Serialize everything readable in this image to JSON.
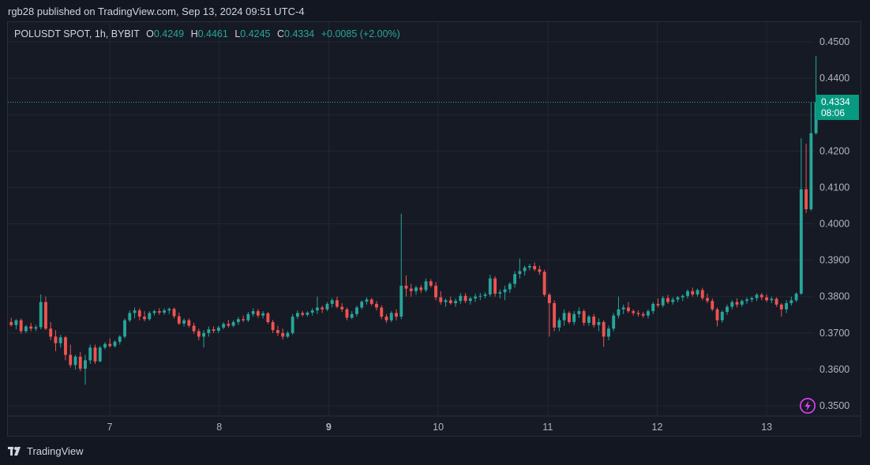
{
  "header": {
    "published": "rgb28 published on TradingView.com, Sep 13, 2024 09:51 UTC-4"
  },
  "legend": {
    "symbol": "POLUSDT SPOT, 1h, BYBIT",
    "open_label": "O",
    "open": "0.4249",
    "high_label": "H",
    "high": "0.4461",
    "low_label": "L",
    "low": "0.4245",
    "close_label": "C",
    "close": "0.4334",
    "change": "+0.0085 (+2.00%)"
  },
  "price_tag": {
    "price": "0.4334",
    "countdown": "08:06"
  },
  "footer": {
    "brand": "TradingView"
  },
  "colors": {
    "up": "#26a69a",
    "down": "#ef5350",
    "tag": "#089981",
    "bg": "#131722"
  },
  "chart_data": {
    "type": "candlestick",
    "interval": "1h",
    "y_ticks": [
      "0.4500",
      "0.4400",
      "0.4300",
      "0.4200",
      "0.4100",
      "0.4000",
      "0.3900",
      "0.3800",
      "0.3700",
      "0.3600",
      "0.3500"
    ],
    "x_ticks": [
      "7",
      "8",
      "9",
      "10",
      "11",
      "12",
      "13"
    ],
    "ylim": [
      0.3465,
      0.4535
    ],
    "x_day_start": 6.1,
    "x_day_end": 13.45,
    "last_price": 0.4334,
    "ohlc": [
      [
        0.373,
        0.3742,
        0.3718,
        0.3722
      ],
      [
        0.3722,
        0.3738,
        0.371,
        0.3735
      ],
      [
        0.3735,
        0.374,
        0.3698,
        0.3705
      ],
      [
        0.3705,
        0.3722,
        0.37,
        0.3718
      ],
      [
        0.3718,
        0.3728,
        0.3705,
        0.3712
      ],
      [
        0.3712,
        0.3722,
        0.3705,
        0.3716
      ],
      [
        0.3716,
        0.3806,
        0.371,
        0.3785
      ],
      [
        0.3785,
        0.38,
        0.3708,
        0.3712
      ],
      [
        0.3712,
        0.373,
        0.368,
        0.369
      ],
      [
        0.369,
        0.3708,
        0.365,
        0.3672
      ],
      [
        0.3672,
        0.3695,
        0.366,
        0.3688
      ],
      [
        0.3688,
        0.3692,
        0.3625,
        0.364
      ],
      [
        0.364,
        0.3668,
        0.3605,
        0.3612
      ],
      [
        0.3612,
        0.364,
        0.36,
        0.3635
      ],
      [
        0.3635,
        0.3648,
        0.3595,
        0.3602
      ],
      [
        0.3602,
        0.364,
        0.3558,
        0.3625
      ],
      [
        0.3625,
        0.3668,
        0.3615,
        0.366
      ],
      [
        0.366,
        0.3668,
        0.3615,
        0.3622
      ],
      [
        0.3622,
        0.3665,
        0.362,
        0.366
      ],
      [
        0.366,
        0.3675,
        0.3655,
        0.367
      ],
      [
        0.367,
        0.3685,
        0.366,
        0.3664
      ],
      [
        0.3664,
        0.368,
        0.366,
        0.3676
      ],
      [
        0.3676,
        0.3694,
        0.3668,
        0.369
      ],
      [
        0.369,
        0.374,
        0.3685,
        0.3735
      ],
      [
        0.3735,
        0.3762,
        0.373,
        0.3755
      ],
      [
        0.3755,
        0.377,
        0.374,
        0.3762
      ],
      [
        0.3762,
        0.3768,
        0.3735,
        0.3745
      ],
      [
        0.3745,
        0.376,
        0.3732,
        0.3738
      ],
      [
        0.3738,
        0.376,
        0.3734,
        0.3755
      ],
      [
        0.3755,
        0.3764,
        0.3748,
        0.376
      ],
      [
        0.376,
        0.3768,
        0.375,
        0.3756
      ],
      [
        0.3756,
        0.3768,
        0.375,
        0.3762
      ],
      [
        0.3762,
        0.377,
        0.3752,
        0.3766
      ],
      [
        0.3766,
        0.377,
        0.374,
        0.3746
      ],
      [
        0.3746,
        0.3756,
        0.3722,
        0.3726
      ],
      [
        0.3726,
        0.374,
        0.3718,
        0.3735
      ],
      [
        0.3735,
        0.374,
        0.3715,
        0.372
      ],
      [
        0.372,
        0.3728,
        0.3698,
        0.3705
      ],
      [
        0.3705,
        0.3712,
        0.368,
        0.369
      ],
      [
        0.369,
        0.3708,
        0.366,
        0.37
      ],
      [
        0.37,
        0.3718,
        0.369,
        0.371
      ],
      [
        0.371,
        0.3718,
        0.37,
        0.3706
      ],
      [
        0.3706,
        0.372,
        0.37,
        0.3715
      ],
      [
        0.3715,
        0.373,
        0.371,
        0.3725
      ],
      [
        0.3725,
        0.3736,
        0.3715,
        0.372
      ],
      [
        0.372,
        0.3735,
        0.3716,
        0.373
      ],
      [
        0.373,
        0.3744,
        0.3722,
        0.3738
      ],
      [
        0.3738,
        0.3748,
        0.373,
        0.3735
      ],
      [
        0.3735,
        0.3758,
        0.373,
        0.3752
      ],
      [
        0.3752,
        0.3768,
        0.3745,
        0.376
      ],
      [
        0.376,
        0.3766,
        0.3742,
        0.3748
      ],
      [
        0.3748,
        0.376,
        0.374,
        0.3754
      ],
      [
        0.3754,
        0.3758,
        0.3725,
        0.373
      ],
      [
        0.373,
        0.3736,
        0.37,
        0.3708
      ],
      [
        0.3708,
        0.372,
        0.3692,
        0.37
      ],
      [
        0.37,
        0.3712,
        0.3682,
        0.369
      ],
      [
        0.369,
        0.3705,
        0.3686,
        0.37
      ],
      [
        0.37,
        0.3752,
        0.3695,
        0.3745
      ],
      [
        0.3745,
        0.3762,
        0.3738,
        0.3755
      ],
      [
        0.3755,
        0.376,
        0.3745,
        0.375
      ],
      [
        0.375,
        0.376,
        0.3745,
        0.3756
      ],
      [
        0.3756,
        0.3768,
        0.3748,
        0.3762
      ],
      [
        0.3762,
        0.38,
        0.3752,
        0.377
      ],
      [
        0.377,
        0.3775,
        0.3755,
        0.3765
      ],
      [
        0.3765,
        0.3785,
        0.376,
        0.378
      ],
      [
        0.378,
        0.3796,
        0.377,
        0.379
      ],
      [
        0.379,
        0.38,
        0.3768,
        0.3772
      ],
      [
        0.3772,
        0.3782,
        0.3758,
        0.3765
      ],
      [
        0.3765,
        0.377,
        0.3735,
        0.3742
      ],
      [
        0.3742,
        0.376,
        0.3738,
        0.3752
      ],
      [
        0.3752,
        0.3775,
        0.3745,
        0.377
      ],
      [
        0.377,
        0.379,
        0.3765,
        0.3786
      ],
      [
        0.3786,
        0.3798,
        0.3778,
        0.3792
      ],
      [
        0.3792,
        0.3796,
        0.3775,
        0.378
      ],
      [
        0.378,
        0.3788,
        0.3762,
        0.377
      ],
      [
        0.377,
        0.3776,
        0.3738,
        0.3745
      ],
      [
        0.3745,
        0.3752,
        0.3728,
        0.3735
      ],
      [
        0.3735,
        0.376,
        0.373,
        0.3755
      ],
      [
        0.3755,
        0.3765,
        0.3735,
        0.3745
      ],
      [
        0.3745,
        0.4028,
        0.3738,
        0.383
      ],
      [
        0.383,
        0.3858,
        0.38,
        0.3822
      ],
      [
        0.3822,
        0.3835,
        0.38,
        0.3815
      ],
      [
        0.3815,
        0.383,
        0.3805,
        0.3825
      ],
      [
        0.3825,
        0.3832,
        0.381,
        0.3818
      ],
      [
        0.3818,
        0.385,
        0.3812,
        0.3842
      ],
      [
        0.3842,
        0.3848,
        0.3825,
        0.383
      ],
      [
        0.383,
        0.384,
        0.379,
        0.3798
      ],
      [
        0.3798,
        0.3815,
        0.3778,
        0.3785
      ],
      [
        0.3785,
        0.3795,
        0.3772,
        0.379
      ],
      [
        0.379,
        0.38,
        0.3778,
        0.3782
      ],
      [
        0.3782,
        0.3795,
        0.3772,
        0.3788
      ],
      [
        0.3788,
        0.381,
        0.378,
        0.3802
      ],
      [
        0.3802,
        0.381,
        0.3782,
        0.3788
      ],
      [
        0.3788,
        0.38,
        0.3778,
        0.3795
      ],
      [
        0.3795,
        0.3808,
        0.3785,
        0.38
      ],
      [
        0.38,
        0.381,
        0.379,
        0.3802
      ],
      [
        0.3802,
        0.3812,
        0.3795,
        0.3806
      ],
      [
        0.3806,
        0.386,
        0.38,
        0.385
      ],
      [
        0.385,
        0.3856,
        0.38,
        0.3808
      ],
      [
        0.3808,
        0.382,
        0.3795,
        0.3812
      ],
      [
        0.3812,
        0.383,
        0.379,
        0.382
      ],
      [
        0.382,
        0.384,
        0.381,
        0.3835
      ],
      [
        0.3835,
        0.387,
        0.3825,
        0.3862
      ],
      [
        0.3862,
        0.3905,
        0.385,
        0.387
      ],
      [
        0.387,
        0.3885,
        0.3858,
        0.388
      ],
      [
        0.388,
        0.389,
        0.3872,
        0.3884
      ],
      [
        0.3884,
        0.3894,
        0.387,
        0.3875
      ],
      [
        0.3875,
        0.3885,
        0.386,
        0.3868
      ],
      [
        0.3868,
        0.3874,
        0.38,
        0.3805
      ],
      [
        0.3805,
        0.381,
        0.369,
        0.3782
      ],
      [
        0.3782,
        0.379,
        0.3705,
        0.3715
      ],
      [
        0.3715,
        0.3742,
        0.3705,
        0.3735
      ],
      [
        0.3735,
        0.3765,
        0.372,
        0.3755
      ],
      [
        0.3755,
        0.376,
        0.3725,
        0.373
      ],
      [
        0.373,
        0.376,
        0.3722,
        0.3752
      ],
      [
        0.3752,
        0.377,
        0.3742,
        0.376
      ],
      [
        0.376,
        0.3765,
        0.372,
        0.3728
      ],
      [
        0.3728,
        0.375,
        0.372,
        0.3745
      ],
      [
        0.3745,
        0.3752,
        0.3715,
        0.3722
      ],
      [
        0.3722,
        0.374,
        0.3705,
        0.373
      ],
      [
        0.373,
        0.3735,
        0.3662,
        0.369
      ],
      [
        0.369,
        0.372,
        0.368,
        0.3712
      ],
      [
        0.3712,
        0.3755,
        0.3705,
        0.3748
      ],
      [
        0.3748,
        0.38,
        0.374,
        0.3765
      ],
      [
        0.3765,
        0.3778,
        0.3752,
        0.377
      ],
      [
        0.377,
        0.3785,
        0.3755,
        0.376
      ],
      [
        0.376,
        0.3765,
        0.3748,
        0.3755
      ],
      [
        0.3755,
        0.3762,
        0.3745,
        0.3752
      ],
      [
        0.3752,
        0.3758,
        0.3742,
        0.3748
      ],
      [
        0.3748,
        0.3765,
        0.374,
        0.376
      ],
      [
        0.376,
        0.3785,
        0.3752,
        0.378
      ],
      [
        0.378,
        0.3795,
        0.377,
        0.3776
      ],
      [
        0.3776,
        0.3802,
        0.377,
        0.3796
      ],
      [
        0.3796,
        0.3805,
        0.378,
        0.3785
      ],
      [
        0.3785,
        0.3798,
        0.3778,
        0.3792
      ],
      [
        0.3792,
        0.3802,
        0.3785,
        0.3798
      ],
      [
        0.3798,
        0.3806,
        0.3788,
        0.3802
      ],
      [
        0.3802,
        0.382,
        0.3795,
        0.3815
      ],
      [
        0.3815,
        0.3825,
        0.38,
        0.3806
      ],
      [
        0.3806,
        0.3822,
        0.38,
        0.3818
      ],
      [
        0.3818,
        0.3824,
        0.379,
        0.3796
      ],
      [
        0.3796,
        0.3808,
        0.3782,
        0.3788
      ],
      [
        0.3788,
        0.3795,
        0.376,
        0.3765
      ],
      [
        0.3765,
        0.377,
        0.3718,
        0.3735
      ],
      [
        0.3735,
        0.3762,
        0.3728,
        0.3758
      ],
      [
        0.3758,
        0.3778,
        0.375,
        0.3772
      ],
      [
        0.3772,
        0.379,
        0.3765,
        0.3785
      ],
      [
        0.3785,
        0.3795,
        0.377,
        0.3778
      ],
      [
        0.3778,
        0.3792,
        0.3772,
        0.3788
      ],
      [
        0.3788,
        0.3798,
        0.378,
        0.3792
      ],
      [
        0.3792,
        0.38,
        0.3785,
        0.3796
      ],
      [
        0.3796,
        0.381,
        0.3788,
        0.3805
      ],
      [
        0.3805,
        0.381,
        0.379,
        0.3798
      ],
      [
        0.3798,
        0.3806,
        0.3785,
        0.379
      ],
      [
        0.379,
        0.38,
        0.3782,
        0.3794
      ],
      [
        0.3794,
        0.3798,
        0.3772,
        0.3778
      ],
      [
        0.3778,
        0.3782,
        0.3745,
        0.3765
      ],
      [
        0.3765,
        0.379,
        0.3755,
        0.3782
      ],
      [
        0.3782,
        0.38,
        0.3775,
        0.379
      ],
      [
        0.379,
        0.3812,
        0.3785,
        0.3808
      ],
      [
        0.3808,
        0.4235,
        0.3805,
        0.4095
      ],
      [
        0.4095,
        0.422,
        0.403,
        0.404
      ],
      [
        0.404,
        0.4335,
        0.4035,
        0.4249
      ],
      [
        0.4249,
        0.4461,
        0.4245,
        0.4334
      ]
    ]
  }
}
